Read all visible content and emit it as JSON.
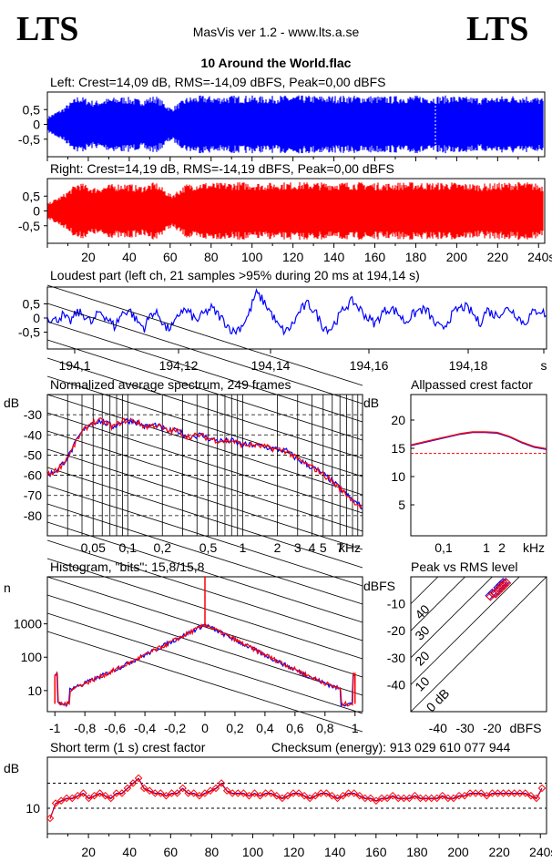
{
  "header": {
    "logo_left": "LTS",
    "logo_right": "LTS",
    "app": "MasVis ver 1.2 - www.lts.a.se",
    "file": "10 Around the World.flac"
  },
  "colors": {
    "left": "#0000ff",
    "right": "#ff0000",
    "grid": "#000000"
  },
  "panels": {
    "left_wave": {
      "label": "Left: Crest=14,09 dB, RMS=-14,09 dBFS, Peak=0,00 dBFS"
    },
    "right_wave": {
      "label": "Right: Crest=14,19 dB, RMS=-14,19 dBFS, Peak=0,00 dBFS"
    },
    "loudest": {
      "label": "Loudest part (left  ch, 21 samples >95% during 20 ms at 194,14 s)"
    },
    "spectrum": {
      "label": "Normalized average spectrum, 249 frames"
    },
    "allpass": {
      "label": "Allpassed crest factor"
    },
    "histogram": {
      "label": "Histogram, \"bits\": 15,8/15,8"
    },
    "peak_rms": {
      "label": "Peak vs RMS level"
    },
    "short_crest": {
      "label": "Short term (1 s) crest factor",
      "checksum": "Checksum (energy):  913 029 610 077 944"
    }
  },
  "chart_data": [
    {
      "id": "left_wave",
      "type": "area",
      "title": "Left: Crest=14,09 dB, RMS=-14,09 dBFS, Peak=0,00 dBFS",
      "ylim": [
        -1,
        1
      ],
      "yticks": [
        "0,5",
        "0",
        "-0,5"
      ],
      "xlim": [
        0,
        243
      ],
      "series": [
        {
          "values": [
            0.25,
            0.55,
            0.98,
            0.8,
            0.9,
            0.95,
            0.85,
            0.98,
            0.55,
            0.92,
            0.98,
            0.95,
            0.98,
            0.98,
            0.95,
            0.98,
            0.98,
            0.98,
            0.97,
            0.98,
            0.98,
            0.97,
            0.95,
            0.98,
            0.98,
            0.96,
            0.98,
            0.94,
            0.92,
            0.95,
            0.98,
            0.98,
            0.9
          ]
        }
      ]
    },
    {
      "id": "right_wave",
      "type": "area",
      "title": "Right: Crest=14,19 dB, RMS=-14,19 dBFS, Peak=0,00 dBFS",
      "ylim": [
        -1,
        1
      ],
      "yticks": [
        "0,5",
        "0",
        "-0,5"
      ],
      "xticks": [
        "20",
        "40",
        "60",
        "80",
        "100",
        "120",
        "140",
        "160",
        "180",
        "200",
        "220",
        "240s"
      ],
      "xlim": [
        0,
        243
      ],
      "series": [
        {
          "values": [
            0.25,
            0.55,
            0.98,
            0.8,
            0.9,
            0.95,
            0.85,
            0.98,
            0.55,
            0.92,
            0.98,
            0.95,
            0.98,
            0.98,
            0.95,
            0.98,
            0.98,
            0.98,
            0.97,
            0.98,
            0.98,
            0.97,
            0.95,
            0.98,
            0.98,
            0.96,
            0.98,
            0.94,
            0.92,
            0.95,
            0.98,
            0.98,
            0.9
          ]
        }
      ]
    },
    {
      "id": "loudest",
      "type": "line",
      "title": "Loudest part (left  ch, 21 samples >95% during 20 ms at 194,14 s)",
      "xlim": [
        194.09,
        194.19
      ],
      "ylim": [
        -1,
        1
      ],
      "xticks": [
        "194,1",
        "194,12",
        "194,14",
        "194,16",
        "194,18",
        "s"
      ],
      "yticks": [
        "0,5",
        "0",
        "-0,5"
      ],
      "series": [
        {
          "name": "left",
          "values": [
            0.05,
            -0.1,
            0.1,
            -0.15,
            0.2,
            0.1,
            -0.2,
            0.25,
            0.0,
            -0.3,
            0.15,
            0.3,
            -0.1,
            -0.35,
            0.2,
            0.1,
            -0.4,
            -0.25,
            0.3,
            0.2,
            -0.1,
            0.15,
            0.35,
            0.1,
            -0.2,
            -0.5,
            -0.3,
            0.1,
            0.9,
            0.6,
            0.2,
            -0.3,
            -0.5,
            -0.2,
            0.3,
            0.5,
            0.2,
            -0.3,
            -0.4,
            0.0,
            0.4,
            0.6,
            0.3,
            0.0,
            -0.2,
            0.2,
            0.35,
            0.2,
            -0.15,
            0.1,
            0.3,
            0.25,
            -0.2,
            -0.4,
            0.0,
            0.3,
            0.4,
            0.2,
            -0.2,
            0.3,
            0.1,
            0.2,
            0.35,
            0.1,
            -0.2,
            0.15,
            0.3,
            0.1
          ]
        }
      ]
    },
    {
      "id": "spectrum",
      "type": "line",
      "title": "Normalized average spectrum, 249 frames",
      "ylabel": "dB",
      "yticks": [
        "-30",
        "-40",
        "-50",
        "-60",
        "-70",
        "-80"
      ],
      "ylim": [
        -90,
        -20
      ],
      "xticks": [
        "0,05",
        "0,1",
        "0,2",
        "0,5",
        "1",
        "2",
        "3",
        "4",
        "5",
        "7",
        "kHz"
      ],
      "xscale": "log",
      "series": [
        {
          "name": "left",
          "values": [
            -60,
            -57,
            -50,
            -40,
            -34,
            -33,
            -36,
            -33,
            -33,
            -36,
            -35,
            -38,
            -38,
            -41,
            -40,
            -42,
            -43,
            -43,
            -45,
            -45,
            -46,
            -47,
            -48,
            -52,
            -55,
            -58,
            -62,
            -67,
            -72,
            -76
          ]
        },
        {
          "name": "right",
          "values": [
            -60,
            -57,
            -50,
            -40,
            -34,
            -33,
            -36,
            -33,
            -33,
            -36,
            -35,
            -38,
            -38,
            -41,
            -40,
            -42,
            -43,
            -43,
            -45,
            -45,
            -46,
            -47,
            -48,
            -52,
            -55,
            -58,
            -62,
            -67,
            -72,
            -76
          ]
        }
      ]
    },
    {
      "id": "allpass",
      "type": "line",
      "title": "Allpassed crest factor",
      "ylabel": "dB",
      "yticks": [
        "20",
        "15",
        "10",
        "5"
      ],
      "xticks": [
        "0,1",
        "1",
        "2",
        "kHz"
      ],
      "ylim": [
        0,
        25
      ],
      "reference": 14.1,
      "series": [
        {
          "name": "left",
          "values": [
            15.5,
            16,
            16.5,
            17,
            17.5,
            17.8,
            17.8,
            17.7,
            17,
            16,
            15.2,
            14.8
          ]
        },
        {
          "name": "right",
          "values": [
            15.6,
            16.1,
            16.6,
            17.1,
            17.6,
            17.9,
            17.9,
            17.8,
            17.1,
            16.1,
            15.3,
            14.9
          ]
        }
      ]
    },
    {
      "id": "histogram",
      "type": "line",
      "title": "Histogram, \"bits\": 15,8/15,8",
      "ylabel": "n",
      "yscale": "log",
      "yticks": [
        "1000",
        "100",
        "10"
      ],
      "xticks": [
        "-1",
        "-0,8",
        "-0,6",
        "-0,4",
        "-0,2",
        "0",
        "0,2",
        "0,4",
        "0,6",
        "0,8",
        "1"
      ],
      "xlim": [
        -1.05,
        1.05
      ],
      "series": [
        {
          "name": "left",
          "x": [
            -1,
            -0.98,
            -0.9,
            -0.8,
            -0.7,
            -0.6,
            -0.5,
            -0.4,
            -0.3,
            -0.2,
            -0.1,
            0,
            0.1,
            0.2,
            0.3,
            0.4,
            0.5,
            0.6,
            0.7,
            0.8,
            0.9,
            0.98,
            1
          ],
          "values": [
            30,
            4,
            4,
            6,
            10,
            25,
            70,
            180,
            380,
            650,
            850,
            900,
            850,
            650,
            380,
            180,
            70,
            25,
            10,
            6,
            4,
            4,
            30
          ]
        },
        {
          "name": "right",
          "x": [
            -1,
            -0.98,
            -0.9,
            -0.8,
            -0.7,
            -0.6,
            -0.5,
            -0.4,
            -0.3,
            -0.2,
            -0.1,
            0,
            0.1,
            0.2,
            0.3,
            0.4,
            0.5,
            0.6,
            0.7,
            0.8,
            0.9,
            0.98,
            1
          ],
          "values": [
            30,
            4,
            4,
            6,
            10,
            25,
            70,
            180,
            380,
            650,
            850,
            900,
            850,
            650,
            380,
            180,
            70,
            25,
            10,
            6,
            4,
            4,
            30
          ]
        }
      ]
    },
    {
      "id": "peak_rms",
      "type": "scatter",
      "title": "Peak vs RMS level",
      "ylabel": "dBFS",
      "xlabel": "dBFS",
      "xticks": [
        "-40",
        "-30",
        "-20"
      ],
      "yticks": [
        "-10",
        "-20",
        "-30",
        "-40"
      ],
      "xlim": [
        -50,
        0
      ],
      "ylim": [
        -50,
        0
      ],
      "diagonals": [
        "40",
        "30",
        "20",
        "10",
        "0 dB"
      ],
      "series": [
        {
          "name": "left",
          "x": [
            -21,
            -19,
            -18,
            -17,
            -16,
            -15,
            -20,
            -18,
            -17,
            -16
          ],
          "y": [
            -7,
            -6,
            -5,
            -4,
            -3,
            -2,
            -6,
            -4,
            -3,
            -2
          ]
        },
        {
          "name": "right",
          "x": [
            -21,
            -19,
            -18,
            -17,
            -16,
            -15,
            -20,
            -18,
            -17,
            -16
          ],
          "y": [
            -7,
            -6,
            -5,
            -4,
            -3,
            -2,
            -6,
            -4,
            -3,
            -2
          ]
        }
      ]
    },
    {
      "id": "short_crest",
      "type": "scatter",
      "title": "Short term (1 s) crest factor",
      "ylabel": "dB",
      "yticks": [
        "10"
      ],
      "xlim": [
        0,
        243
      ],
      "xticks": [
        "20",
        "40",
        "60",
        "80",
        "100",
        "120",
        "140",
        "160",
        "180",
        "200",
        "220",
        "240s"
      ],
      "series": [
        {
          "name": "left",
          "values": [
            8,
            11,
            11.5,
            12,
            12,
            12.5,
            13,
            12,
            12.5,
            13,
            12.5,
            12,
            13,
            13,
            14,
            15,
            16,
            14,
            13.5,
            13,
            13,
            12.5,
            13,
            13,
            14,
            13,
            13,
            12.5,
            13,
            13.5,
            14,
            15,
            13.5,
            13,
            13,
            13,
            12.5,
            13,
            12.5,
            13,
            13,
            12.5,
            12,
            12.5,
            13,
            13,
            12.5,
            12,
            12.5,
            13,
            13,
            12.5,
            12,
            12.5,
            13,
            13,
            12.5,
            12,
            12,
            11.5,
            12,
            12,
            12.5,
            12,
            12,
            12,
            12.5,
            12,
            12,
            12,
            12,
            12.5,
            12,
            12,
            12.5,
            12.5,
            13,
            13,
            13,
            12.5,
            13,
            13,
            13,
            13,
            13,
            13,
            13,
            12.5,
            12,
            14
          ]
        },
        {
          "name": "right",
          "values": [
            8,
            11,
            11.5,
            12,
            12,
            12.5,
            13,
            12,
            12.5,
            13,
            12.5,
            12,
            13,
            13,
            14,
            15,
            16,
            14,
            13.5,
            13,
            13,
            12.5,
            13,
            13,
            14,
            13,
            13,
            12.5,
            13,
            13.5,
            14,
            15,
            13.5,
            13,
            13,
            13,
            12.5,
            13,
            12.5,
            13,
            13,
            12.5,
            12,
            12.5,
            13,
            13,
            12.5,
            12,
            12.5,
            13,
            13,
            12.5,
            12,
            12.5,
            13,
            13,
            12.5,
            12,
            12,
            11.5,
            12,
            12,
            12.5,
            12,
            12,
            12,
            12.5,
            12,
            12,
            12,
            12,
            12.5,
            12,
            12,
            12.5,
            12.5,
            13,
            13,
            13,
            12.5,
            13,
            13,
            13,
            13,
            13,
            13,
            13,
            12.5,
            12,
            14
          ]
        }
      ]
    }
  ]
}
